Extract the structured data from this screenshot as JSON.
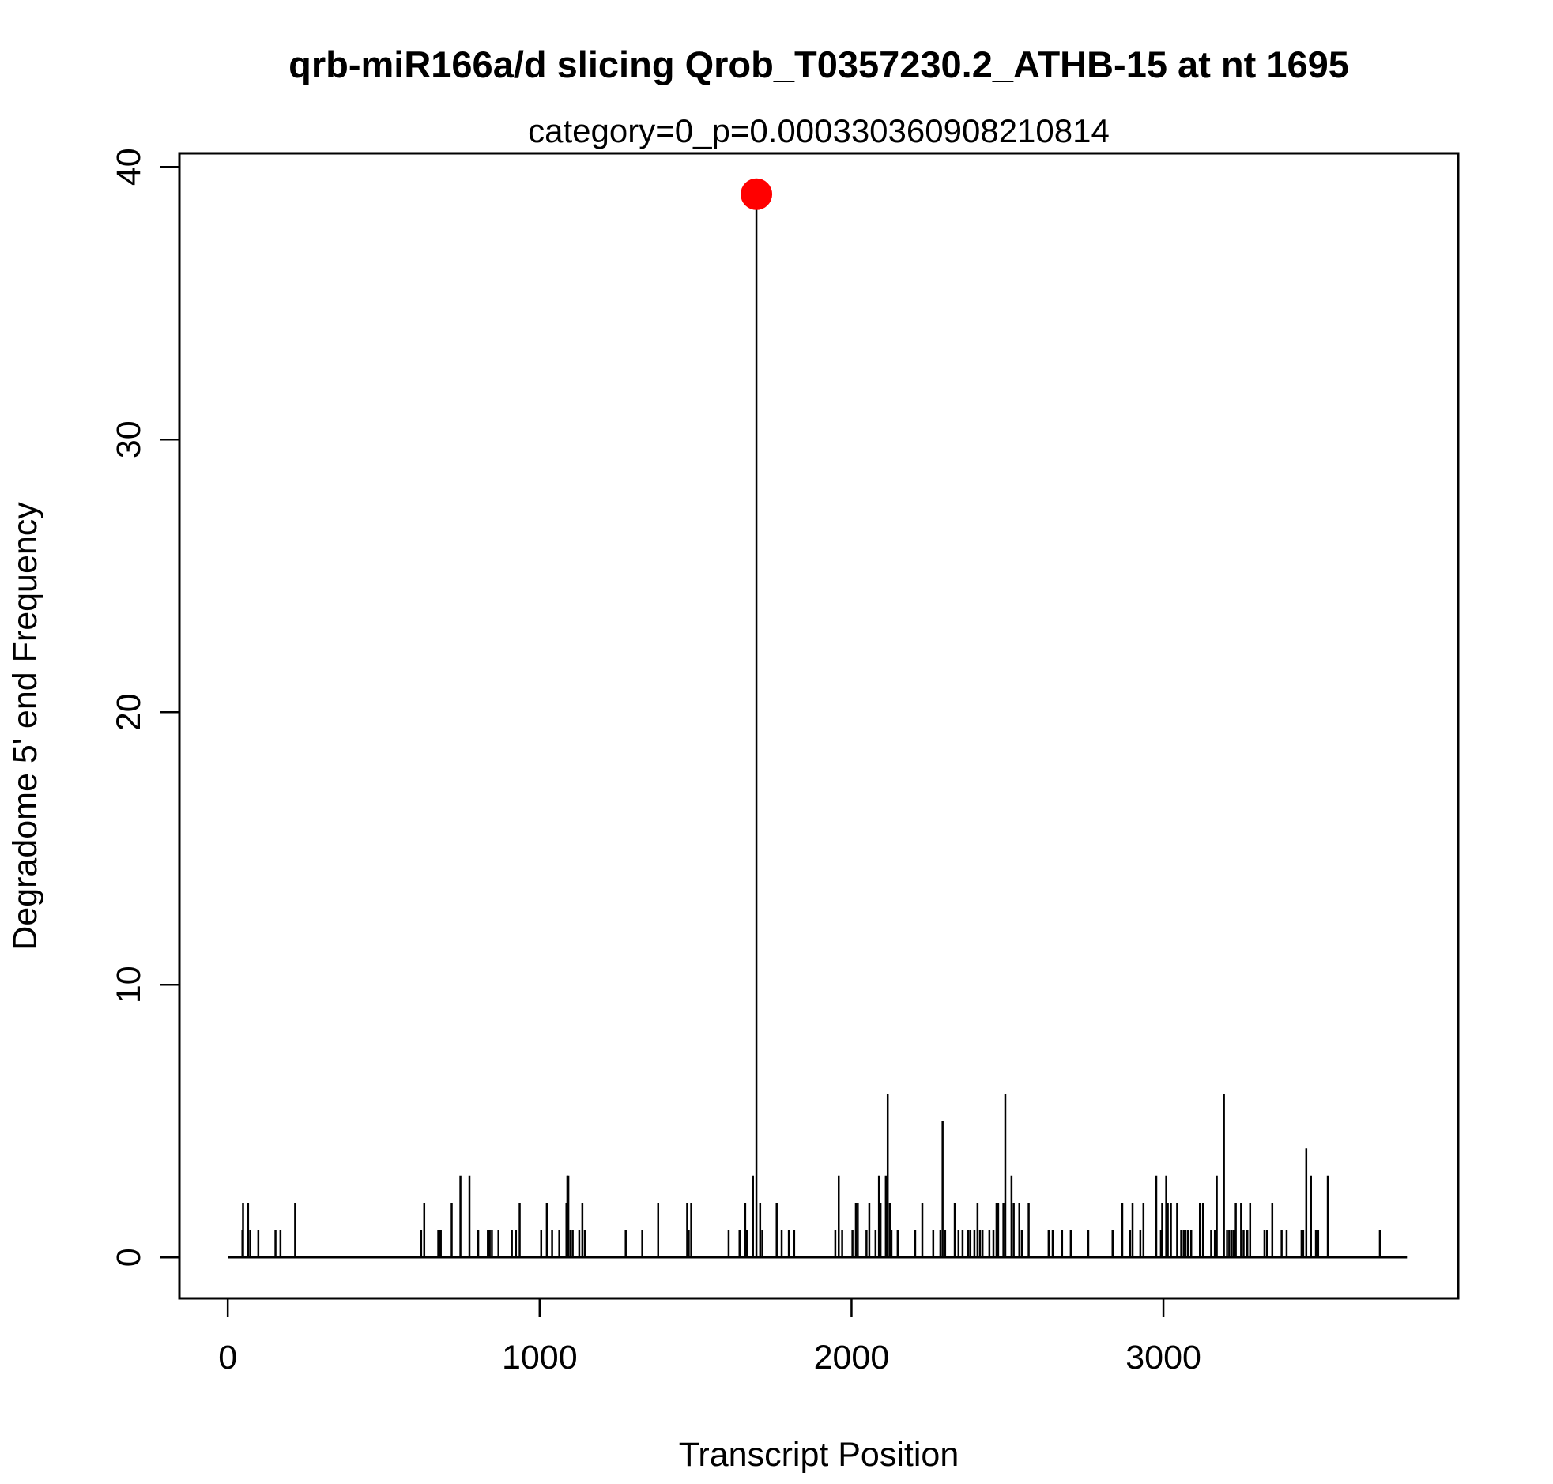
{
  "chart_data": {
    "type": "line",
    "title": "qrb-miR166a/d slicing Qrob_T0357230.2_ATHB-15 at nt 1695",
    "subtitle": "category=0_p=0.000330360908210814",
    "xlabel": "Transcript Position",
    "ylabel": "Degradome 5' end Frequency",
    "xlim": [
      -155,
      3945
    ],
    "ylim": [
      -1.5,
      40.5
    ],
    "xticks": [
      0,
      1000,
      2000,
      3000
    ],
    "yticks": [
      0,
      10,
      20,
      30,
      40
    ],
    "grid": false,
    "transcript_length": 3781,
    "highlight": {
      "x": 1695,
      "y": 39,
      "color": "#ff0000"
    },
    "line_color": "#000000",
    "spikes": [
      [
        47,
        1
      ],
      [
        49,
        2
      ],
      [
        65,
        2
      ],
      [
        72,
        1
      ],
      [
        98,
        1
      ],
      [
        153,
        1
      ],
      [
        169,
        1
      ],
      [
        216,
        2
      ],
      [
        620,
        1
      ],
      [
        630,
        2
      ],
      [
        675,
        1
      ],
      [
        679,
        1
      ],
      [
        683,
        1
      ],
      [
        718,
        2
      ],
      [
        746,
        3
      ],
      [
        775,
        3
      ],
      [
        803,
        1
      ],
      [
        834,
        1
      ],
      [
        840,
        1
      ],
      [
        847,
        1
      ],
      [
        868,
        1
      ],
      [
        911,
        1
      ],
      [
        924,
        1
      ],
      [
        936,
        2
      ],
      [
        1005,
        1
      ],
      [
        1023,
        2
      ],
      [
        1040,
        1
      ],
      [
        1063,
        1
      ],
      [
        1086,
        2
      ],
      [
        1089,
        3
      ],
      [
        1092,
        3
      ],
      [
        1099,
        1
      ],
      [
        1106,
        1
      ],
      [
        1127,
        1
      ],
      [
        1137,
        2
      ],
      [
        1145,
        1
      ],
      [
        1276,
        1
      ],
      [
        1329,
        1
      ],
      [
        1380,
        2
      ],
      [
        1473,
        2
      ],
      [
        1478,
        1
      ],
      [
        1486,
        2
      ],
      [
        1606,
        1
      ],
      [
        1641,
        1
      ],
      [
        1659,
        2
      ],
      [
        1664,
        1
      ],
      [
        1684,
        3
      ],
      [
        1695,
        39
      ],
      [
        1707,
        2
      ],
      [
        1714,
        1
      ],
      [
        1760,
        2
      ],
      [
        1776,
        1
      ],
      [
        1799,
        1
      ],
      [
        1816,
        1
      ],
      [
        1948,
        1
      ],
      [
        1959,
        3
      ],
      [
        1970,
        1
      ],
      [
        2003,
        1
      ],
      [
        2014,
        2
      ],
      [
        2020,
        2
      ],
      [
        2048,
        1
      ],
      [
        2057,
        2
      ],
      [
        2077,
        1
      ],
      [
        2088,
        3
      ],
      [
        2093,
        2
      ],
      [
        2110,
        3
      ],
      [
        2116,
        6
      ],
      [
        2123,
        2
      ],
      [
        2128,
        1
      ],
      [
        2148,
        1
      ],
      [
        2204,
        1
      ],
      [
        2227,
        2
      ],
      [
        2262,
        1
      ],
      [
        2285,
        1
      ],
      [
        2292,
        5
      ],
      [
        2300,
        1
      ],
      [
        2331,
        2
      ],
      [
        2343,
        1
      ],
      [
        2356,
        1
      ],
      [
        2374,
        1
      ],
      [
        2381,
        1
      ],
      [
        2394,
        1
      ],
      [
        2404,
        2
      ],
      [
        2412,
        1
      ],
      [
        2420,
        1
      ],
      [
        2442,
        1
      ],
      [
        2455,
        1
      ],
      [
        2465,
        2
      ],
      [
        2470,
        2
      ],
      [
        2487,
        2
      ],
      [
        2493,
        6
      ],
      [
        2513,
        3
      ],
      [
        2520,
        2
      ],
      [
        2538,
        2
      ],
      [
        2546,
        1
      ],
      [
        2568,
        2
      ],
      [
        2632,
        1
      ],
      [
        2645,
        1
      ],
      [
        2675,
        1
      ],
      [
        2703,
        1
      ],
      [
        2759,
        1
      ],
      [
        2837,
        1
      ],
      [
        2868,
        2
      ],
      [
        2893,
        1
      ],
      [
        2901,
        2
      ],
      [
        2926,
        1
      ],
      [
        2936,
        2
      ],
      [
        2977,
        3
      ],
      [
        2992,
        1
      ],
      [
        2996,
        2
      ],
      [
        3009,
        3
      ],
      [
        3014,
        2
      ],
      [
        3024,
        2
      ],
      [
        3044,
        2
      ],
      [
        3057,
        1
      ],
      [
        3065,
        1
      ],
      [
        3071,
        1
      ],
      [
        3079,
        1
      ],
      [
        3089,
        1
      ],
      [
        3117,
        2
      ],
      [
        3127,
        2
      ],
      [
        3153,
        1
      ],
      [
        3165,
        1
      ],
      [
        3171,
        3
      ],
      [
        3194,
        6
      ],
      [
        3204,
        1
      ],
      [
        3211,
        1
      ],
      [
        3219,
        1
      ],
      [
        3226,
        1
      ],
      [
        3232,
        2
      ],
      [
        3249,
        2
      ],
      [
        3257,
        1
      ],
      [
        3269,
        1
      ],
      [
        3278,
        2
      ],
      [
        3324,
        1
      ],
      [
        3332,
        1
      ],
      [
        3349,
        2
      ],
      [
        3379,
        1
      ],
      [
        3395,
        1
      ],
      [
        3443,
        1
      ],
      [
        3448,
        1
      ],
      [
        3458,
        4
      ],
      [
        3473,
        3
      ],
      [
        3489,
        1
      ],
      [
        3496,
        1
      ],
      [
        3527,
        3
      ],
      [
        3694,
        1
      ]
    ]
  }
}
